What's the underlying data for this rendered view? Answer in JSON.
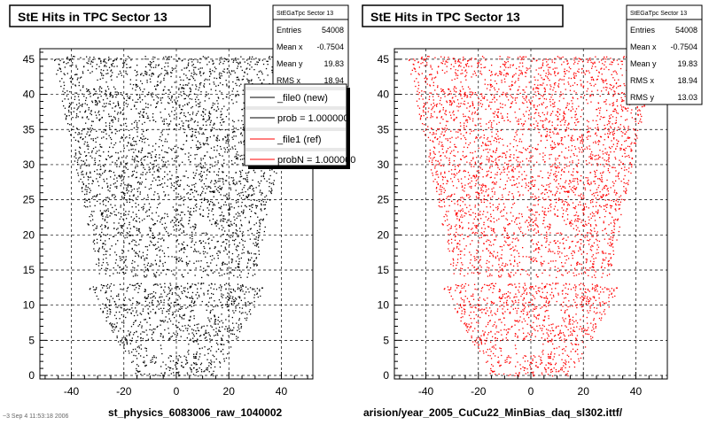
{
  "panels": [
    {
      "title": "StE Hits in TPC Sector 13",
      "xlabel": "st_physics_6083006_raw_1040002",
      "color": "#000000",
      "stats": {
        "name": "StEGaTpc Sector 13",
        "rows": [
          {
            "k": "Entries",
            "v": "54008"
          },
          {
            "k": "Mean x",
            "v": "-0.7504"
          },
          {
            "k": "Mean y",
            "v": "19.83"
          },
          {
            "k": "RMS x",
            "v": "18.94"
          }
        ]
      },
      "legend": [
        {
          "label": "_file0 (new)",
          "color": "#000000",
          "blank": true
        },
        {
          "label": "prob = 1.000000",
          "color": "#000000",
          "blank": false
        },
        {
          "label": "_file1 (ref)",
          "color": "#ff0000",
          "blank": false
        },
        {
          "label": "probN = 1.000000",
          "color": "#ff0000",
          "blank": false
        }
      ]
    },
    {
      "title": "StE Hits in TPC Sector 13",
      "xlabel": "arision/year_2005_CuCu22_MinBias_daq_sl302.ittf/",
      "color": "#ff0000",
      "stats": {
        "name": "StEGaTpc Sector 13",
        "rows": [
          {
            "k": "Entries",
            "v": "54008"
          },
          {
            "k": "Mean x",
            "v": "-0.7504"
          },
          {
            "k": "Mean y",
            "v": "19.83"
          },
          {
            "k": "RMS x",
            "v": "18.94"
          },
          {
            "k": "RMS y",
            "v": "13.03"
          }
        ]
      }
    }
  ],
  "footer_text": "~3 Sep 4 11:53:18 2006",
  "chart_data": [
    {
      "type": "scatter",
      "title": "StE Hits in TPC Sector 13",
      "xlabel": "st_physics_6083006_raw_1040002",
      "ylabel": "",
      "xlim": [
        -52,
        52
      ],
      "ylim": [
        -0.5,
        46.5
      ],
      "xticks": [
        -40,
        -20,
        0,
        20,
        40
      ],
      "yticks": [
        0,
        5,
        10,
        15,
        20,
        25,
        30,
        35,
        40,
        45
      ],
      "ytick_labels": [
        "0",
        "5",
        "10",
        "15",
        "20",
        "25",
        "30",
        "35",
        "40",
        "45"
      ],
      "grid": true,
      "series": [
        {
          "entries": 54008,
          "mean_x": -0.7504,
          "mean_y": 19.83,
          "rms_x": 18.94,
          "color": "#000000"
        }
      ]
    },
    {
      "type": "scatter",
      "title": "StE Hits in TPC Sector 13",
      "xlabel": "arision/year_2005_CuCu22_MinBias_daq_sl302.ittf/",
      "ylabel": "",
      "xlim": [
        -52,
        52
      ],
      "ylim": [
        -0.5,
        46.5
      ],
      "xticks": [
        -40,
        -20,
        0,
        20,
        40
      ],
      "yticks": [
        0,
        5,
        10,
        15,
        20,
        25,
        30,
        35,
        40,
        45
      ],
      "ytick_labels": [
        "0",
        "5",
        "10",
        "15",
        "20",
        "25",
        "30",
        "35",
        "40",
        "45"
      ],
      "grid": true,
      "series": [
        {
          "entries": 54008,
          "mean_x": -0.7504,
          "mean_y": 19.83,
          "rms_x": 18.94,
          "rms_y": 13.03,
          "color": "#ff0000"
        }
      ]
    }
  ]
}
